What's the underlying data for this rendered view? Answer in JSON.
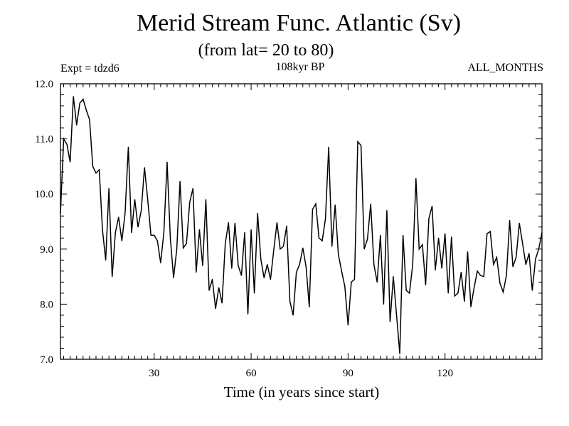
{
  "chart_data": {
    "type": "line",
    "title": "Merid Stream Func. Atlantic (Sv)",
    "subtitle": "(from lat= 20 to 80)",
    "annotation_left": "Expt = tdzd6",
    "annotation_center": "108kyr BP",
    "annotation_right": "ALL_MONTHS",
    "xlabel": "Time (in years since start)",
    "ylabel": "",
    "xlim": [
      1,
      150
    ],
    "ylim": [
      7.0,
      12.0
    ],
    "x_ticks": [
      30,
      60,
      90,
      120
    ],
    "x_tick_labels": [
      "30",
      "60",
      "90",
      "120"
    ],
    "y_ticks": [
      7.0,
      8.0,
      9.0,
      10.0,
      11.0,
      12.0
    ],
    "y_tick_labels": [
      "7.0",
      "8.0",
      "9.0",
      "10.0",
      "11.0",
      "12.0"
    ],
    "x_start": 1,
    "x_step": 1,
    "series": [
      {
        "name": "Merid Stream Func.",
        "color": "#000000",
        "values": [
          9.65,
          11.0,
          10.9,
          10.58,
          11.77,
          11.25,
          11.65,
          11.72,
          11.52,
          11.35,
          10.5,
          10.38,
          10.44,
          9.35,
          8.8,
          10.1,
          8.5,
          9.3,
          9.58,
          9.15,
          9.65,
          10.85,
          9.3,
          9.9,
          9.4,
          9.7,
          10.48,
          9.9,
          9.25,
          9.25,
          9.15,
          8.75,
          9.3,
          10.58,
          9.2,
          8.48,
          9.0,
          10.23,
          9.02,
          9.1,
          9.85,
          10.1,
          8.58,
          9.35,
          8.7,
          9.9,
          8.25,
          8.45,
          7.92,
          8.3,
          8.02,
          9.1,
          9.48,
          8.65,
          9.47,
          8.7,
          8.52,
          9.3,
          7.82,
          9.35,
          8.2,
          9.65,
          8.82,
          8.48,
          8.72,
          8.45,
          8.98,
          9.48,
          9.0,
          9.05,
          9.42,
          8.05,
          7.8,
          8.58,
          8.72,
          9.02,
          8.68,
          7.95,
          9.72,
          9.82,
          9.2,
          9.15,
          9.55,
          10.85,
          9.05,
          9.8,
          8.9,
          8.6,
          8.32,
          7.62,
          8.4,
          8.45,
          10.95,
          10.88,
          9.0,
          9.18,
          9.82,
          8.72,
          8.4,
          9.25,
          8.0,
          9.7,
          7.68,
          8.5,
          7.8,
          7.1,
          9.25,
          8.25,
          8.2,
          8.72,
          10.28,
          9.0,
          9.08,
          8.35,
          9.55,
          9.78,
          8.62,
          9.2,
          8.65,
          9.28,
          8.2,
          9.22,
          8.15,
          8.2,
          8.58,
          8.05,
          8.95,
          7.95,
          8.3,
          8.6,
          8.52,
          8.5,
          9.28,
          9.32,
          8.72,
          8.85,
          8.38,
          8.22,
          8.52,
          9.52,
          8.68,
          8.85,
          9.47,
          9.1,
          8.72,
          8.92,
          8.25,
          8.82,
          9.0,
          9.3
        ]
      }
    ]
  }
}
